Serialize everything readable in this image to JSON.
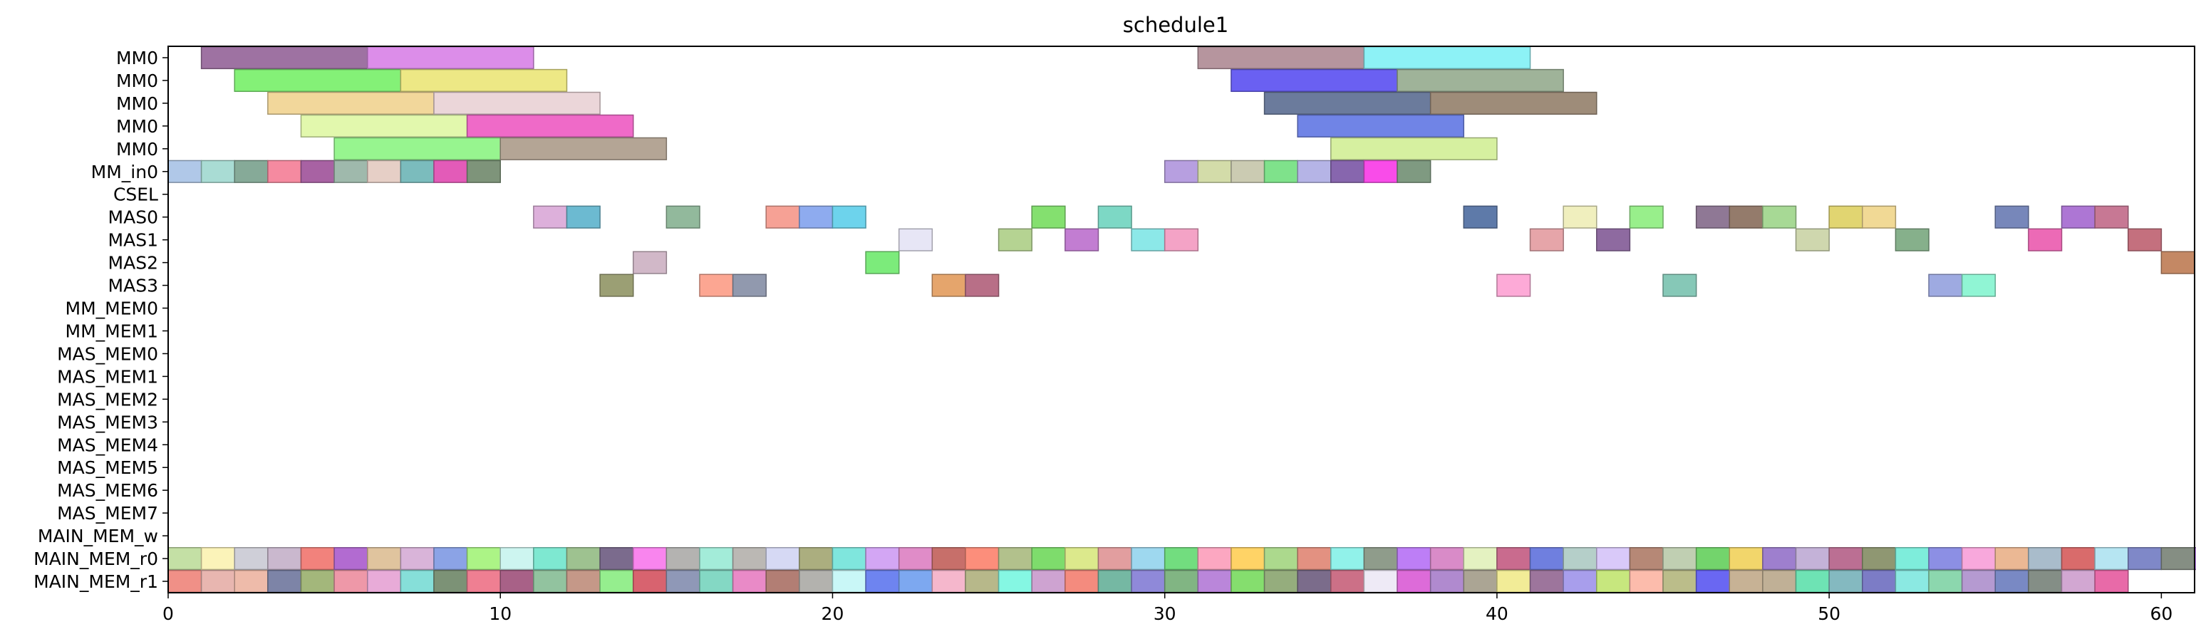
{
  "chart_data": {
    "type": "gantt",
    "title": "schedule1",
    "xlabel": "",
    "ylabel": "",
    "xlim": [
      0,
      61
    ],
    "x_ticks": [
      0,
      10,
      20,
      30,
      40,
      50,
      60
    ],
    "grid": false,
    "rows": [
      "MM0",
      "MM0",
      "MM0",
      "MM0",
      "MM0",
      "MM_in0",
      "CSEL",
      "MAS0",
      "MAS1",
      "MAS2",
      "MAS3",
      "MM_MEM0",
      "MM_MEM1",
      "MAS_MEM0",
      "MAS_MEM1",
      "MAS_MEM2",
      "MAS_MEM3",
      "MAS_MEM4",
      "MAS_MEM5",
      "MAS_MEM6",
      "MAS_MEM7",
      "MAIN_MEM_w",
      "MAIN_MEM_r0",
      "MAIN_MEM_r1"
    ],
    "tasks": [
      {
        "row": 0,
        "start": 1,
        "end": 6,
        "color": "#9e72a2"
      },
      {
        "row": 0,
        "start": 6,
        "end": 11,
        "color": "#dc8de9"
      },
      {
        "row": 0,
        "start": 31,
        "end": 36,
        "color": "#b6959e"
      },
      {
        "row": 0,
        "start": 36,
        "end": 41,
        "color": "#8df2f6"
      },
      {
        "row": 1,
        "start": 2,
        "end": 7,
        "color": "#84f177"
      },
      {
        "row": 1,
        "start": 7,
        "end": 12,
        "color": "#ede885"
      },
      {
        "row": 1,
        "start": 32,
        "end": 37,
        "color": "#6a60f2"
      },
      {
        "row": 1,
        "start": 37,
        "end": 42,
        "color": "#9fb399"
      },
      {
        "row": 2,
        "start": 3,
        "end": 8,
        "color": "#f2d79b"
      },
      {
        "row": 2,
        "start": 8,
        "end": 13,
        "color": "#ebd6d9"
      },
      {
        "row": 2,
        "start": 33,
        "end": 38,
        "color": "#6b7b9c"
      },
      {
        "row": 2,
        "start": 38,
        "end": 43,
        "color": "#9e8c79"
      },
      {
        "row": 3,
        "start": 4,
        "end": 9,
        "color": "#e2f8ad"
      },
      {
        "row": 3,
        "start": 9,
        "end": 14,
        "color": "#ef6ac8"
      },
      {
        "row": 3,
        "start": 34,
        "end": 39,
        "color": "#7084e6"
      },
      {
        "row": 4,
        "start": 5,
        "end": 10,
        "color": "#97f58f"
      },
      {
        "row": 4,
        "start": 10,
        "end": 15,
        "color": "#b4a595"
      },
      {
        "row": 4,
        "start": 35,
        "end": 40,
        "color": "#d6f0a0"
      },
      {
        "row": 5,
        "start": 0,
        "end": 1,
        "color": "#b0c8e8"
      },
      {
        "row": 5,
        "start": 1,
        "end": 2,
        "color": "#a9dcd4"
      },
      {
        "row": 5,
        "start": 2,
        "end": 3,
        "color": "#86aa98"
      },
      {
        "row": 5,
        "start": 3,
        "end": 4,
        "color": "#f58aa0"
      },
      {
        "row": 5,
        "start": 4,
        "end": 5,
        "color": "#a862a3"
      },
      {
        "row": 5,
        "start": 5,
        "end": 6,
        "color": "#9fb9ac"
      },
      {
        "row": 5,
        "start": 6,
        "end": 7,
        "color": "#e6cfc6"
      },
      {
        "row": 5,
        "start": 7,
        "end": 8,
        "color": "#7bbcbd"
      },
      {
        "row": 5,
        "start": 8,
        "end": 9,
        "color": "#e35bb8"
      },
      {
        "row": 5,
        "start": 9,
        "end": 10,
        "color": "#7e947a"
      },
      {
        "row": 5,
        "start": 30,
        "end": 31,
        "color": "#b79fe0"
      },
      {
        "row": 5,
        "start": 31,
        "end": 32,
        "color": "#d3dca9"
      },
      {
        "row": 5,
        "start": 32,
        "end": 33,
        "color": "#cbcbb2"
      },
      {
        "row": 5,
        "start": 33,
        "end": 34,
        "color": "#7fe28b"
      },
      {
        "row": 5,
        "start": 34,
        "end": 35,
        "color": "#b5b4e6"
      },
      {
        "row": 5,
        "start": 35,
        "end": 36,
        "color": "#8766ae"
      },
      {
        "row": 5,
        "start": 36,
        "end": 37,
        "color": "#f94ce9"
      },
      {
        "row": 5,
        "start": 37,
        "end": 38,
        "color": "#7f9a81"
      },
      {
        "row": 7,
        "start": 11,
        "end": 12,
        "color": "#ddb0db"
      },
      {
        "row": 7,
        "start": 12,
        "end": 13,
        "color": "#6cbad1"
      },
      {
        "row": 7,
        "start": 15,
        "end": 16,
        "color": "#92b99c"
      },
      {
        "row": 7,
        "start": 18,
        "end": 19,
        "color": "#f6a195"
      },
      {
        "row": 7,
        "start": 19,
        "end": 20,
        "color": "#8eabef"
      },
      {
        "row": 7,
        "start": 20,
        "end": 21,
        "color": "#6dd3ec"
      },
      {
        "row": 7,
        "start": 26,
        "end": 27,
        "color": "#84e06f"
      },
      {
        "row": 7,
        "start": 28,
        "end": 29,
        "color": "#7dd8c5"
      },
      {
        "row": 7,
        "start": 39,
        "end": 40,
        "color": "#5e7aa9"
      },
      {
        "row": 7,
        "start": 42,
        "end": 43,
        "color": "#f0efbe"
      },
      {
        "row": 7,
        "start": 44,
        "end": 45,
        "color": "#98ef8b"
      },
      {
        "row": 7,
        "start": 46,
        "end": 47,
        "color": "#8f7895"
      },
      {
        "row": 7,
        "start": 47,
        "end": 48,
        "color": "#947b6b"
      },
      {
        "row": 7,
        "start": 48,
        "end": 49,
        "color": "#a7d995"
      },
      {
        "row": 7,
        "start": 50,
        "end": 51,
        "color": "#e1d571"
      },
      {
        "row": 7,
        "start": 51,
        "end": 52,
        "color": "#f1d995"
      },
      {
        "row": 7,
        "start": 55,
        "end": 56,
        "color": "#7787ba"
      },
      {
        "row": 7,
        "start": 57,
        "end": 58,
        "color": "#ad76d4"
      },
      {
        "row": 7,
        "start": 58,
        "end": 59,
        "color": "#c77894"
      },
      {
        "row": 8,
        "start": 22,
        "end": 23,
        "color": "#e7e6f6"
      },
      {
        "row": 8,
        "start": 25,
        "end": 26,
        "color": "#b5d392"
      },
      {
        "row": 8,
        "start": 27,
        "end": 28,
        "color": "#c27dd2"
      },
      {
        "row": 8,
        "start": 29,
        "end": 30,
        "color": "#8ce8e8"
      },
      {
        "row": 8,
        "start": 30,
        "end": 31,
        "color": "#f4a3c6"
      },
      {
        "row": 8,
        "start": 41,
        "end": 42,
        "color": "#e6a5a9"
      },
      {
        "row": 8,
        "start": 43,
        "end": 44,
        "color": "#8e6aa0"
      },
      {
        "row": 8,
        "start": 49,
        "end": 50,
        "color": "#cfd7ae"
      },
      {
        "row": 8,
        "start": 52,
        "end": 53,
        "color": "#86b08b"
      },
      {
        "row": 8,
        "start": 56,
        "end": 57,
        "color": "#ec6ab6"
      },
      {
        "row": 8,
        "start": 59,
        "end": 60,
        "color": "#c4707e"
      },
      {
        "row": 9,
        "start": 14,
        "end": 15,
        "color": "#d1b8c8"
      },
      {
        "row": 9,
        "start": 21,
        "end": 22,
        "color": "#7ceb7b"
      },
      {
        "row": 9,
        "start": 60,
        "end": 61,
        "color": "#c48864"
      },
      {
        "row": 10,
        "start": 13,
        "end": 14,
        "color": "#9b9f74"
      },
      {
        "row": 10,
        "start": 16,
        "end": 17,
        "color": "#fca692"
      },
      {
        "row": 10,
        "start": 17,
        "end": 18,
        "color": "#9199ae"
      },
      {
        "row": 10,
        "start": 23,
        "end": 24,
        "color": "#e5a56c"
      },
      {
        "row": 10,
        "start": 24,
        "end": 25,
        "color": "#b86f87"
      },
      {
        "row": 10,
        "start": 40,
        "end": 41,
        "color": "#fdaad7"
      },
      {
        "row": 10,
        "start": 45,
        "end": 46,
        "color": "#86c8b7"
      },
      {
        "row": 10,
        "start": 53,
        "end": 54,
        "color": "#9eaae1"
      },
      {
        "row": 10,
        "start": 54,
        "end": 55,
        "color": "#90f5d4"
      }
    ],
    "main_mem_r0_colors": [
      "#c4e0a5",
      "#fbf3b9",
      "#cfcfd8",
      "#cab8ce",
      "#f2827c",
      "#b26bd1",
      "#e0c49e",
      "#d9b4d9",
      "#8ba3e6",
      "#acf486",
      "#cdf5f0",
      "#7ee8d1",
      "#9ec290",
      "#7b6b8d",
      "#f985ee",
      "#b4b3b1",
      "#a3ecd9",
      "#bbb8b4",
      "#d6d9f4",
      "#abae7f",
      "#7fe6dd",
      "#d3a6f4",
      "#e08cc8",
      "#c76f6a",
      "#fc8e7b",
      "#b2c18c",
      "#7edc6c",
      "#dce98c",
      "#e29e9f",
      "#9ed8ef",
      "#72dd7f",
      "#fca7c1",
      "#ffd366",
      "#acd98d",
      "#e39181",
      "#91f2ea",
      "#8f9c8b",
      "#bd7ef6",
      "#d98bc8",
      "#e4f2c1",
      "#c96b8e",
      "#6f7fdf",
      "#b5cfc9",
      "#d9c9f9",
      "#b68876",
      "#c0cfb2",
      "#73d46c",
      "#f2d66b",
      "#9e7fce",
      "#c4b2d8",
      "#bb6f93",
      "#8f9772",
      "#7eeddb",
      "#8c8fe4",
      "#f8a8dc",
      "#ebb894",
      "#a9bccb",
      "#d96b6b",
      "#b6e5f2",
      "#7f88c8",
      "#858e83",
      "#c589f7",
      "#d88dd7"
    ],
    "main_mem_r1_colors": [
      "#f09087",
      "#e8b6b0",
      "#eebbaa",
      "#7d84a7",
      "#a3b77b",
      "#ee98a8",
      "#e8abd8",
      "#86dfd9",
      "#7c9276",
      "#ef7f92",
      "#a86187",
      "#92c39f",
      "#c59888",
      "#95ee8e",
      "#d8636f",
      "#8f98b7",
      "#84d8c4",
      "#e98ac7",
      "#b27e74",
      "#b3b2ae",
      "#c9f7f7",
      "#6e84f0",
      "#7da8f0",
      "#f5b7cc",
      "#b7b88a",
      "#85f7e3",
      "#cea3d1",
      "#f48b7e",
      "#75b8a3",
      "#8f89d9",
      "#81b583",
      "#ba86da",
      "#85de6e",
      "#95ad7d",
      "#7b6c8b",
      "#cc7087",
      "#eeeaf6",
      "#dd6bd9",
      "#b08acf",
      "#aba594",
      "#f2ec97",
      "#9d759c",
      "#a89eec",
      "#c7e77e",
      "#fcbcac",
      "#bbbd8a",
      "#6a67f2",
      "#c7b295",
      "#c0b096",
      "#6ee3b4",
      "#84b9c0",
      "#7c7cc6",
      "#8be9e2",
      "#8cd7ae",
      "#b59ad1",
      "#7989c4",
      "#848e86",
      "#d2a7d2",
      "#e86aa8"
    ]
  }
}
